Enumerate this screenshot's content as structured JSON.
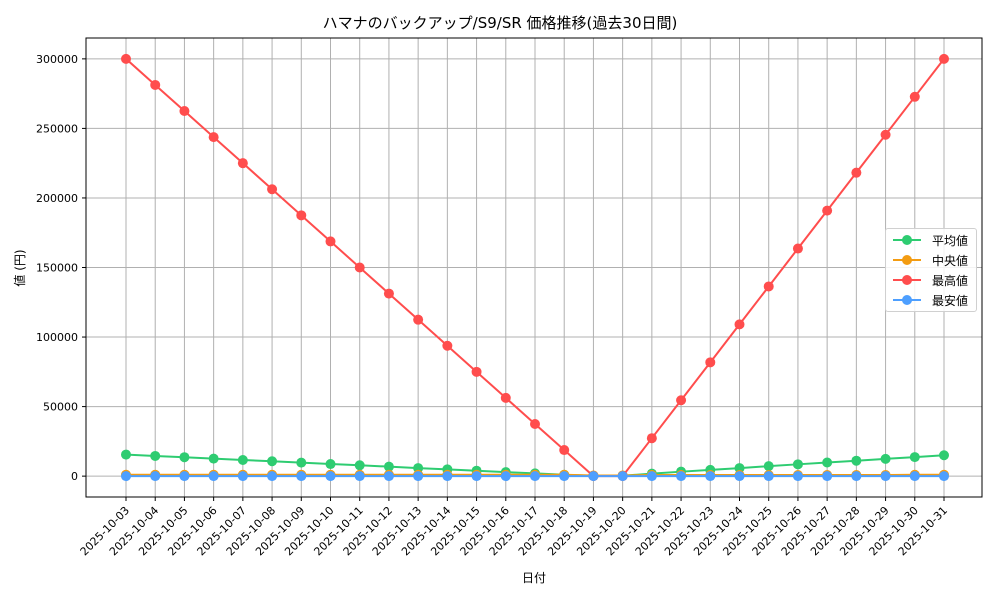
{
  "title": "ハマナのバックアップ/S9/SR 価格推移(過去30日間)",
  "chart_data": {
    "type": "line",
    "title": "ハマナのバックアップ/S9/SR 価格推移(過去30日間)",
    "xlabel": "日付",
    "ylabel": "値 (円)",
    "ylim": [
      -15000,
      315000
    ],
    "yticks": [
      0,
      50000,
      100000,
      150000,
      200000,
      250000,
      300000
    ],
    "grid": true,
    "legend_position": "center right",
    "x": [
      "2025-10-03",
      "2025-10-04",
      "2025-10-05",
      "2025-10-06",
      "2025-10-07",
      "2025-10-08",
      "2025-10-09",
      "2025-10-10",
      "2025-10-11",
      "2025-10-12",
      "2025-10-13",
      "2025-10-14",
      "2025-10-15",
      "2025-10-16",
      "2025-10-17",
      "2025-10-18",
      "2025-10-19",
      "2025-10-20",
      "2025-10-21",
      "2025-10-22",
      "2025-10-23",
      "2025-10-24",
      "2025-10-25",
      "2025-10-26",
      "2025-10-27",
      "2025-10-28",
      "2025-10-29",
      "2025-10-30",
      "2025-10-31"
    ],
    "series": [
      {
        "name": "平均値",
        "color": "#2ecc71",
        "values": [
          15500,
          14500,
          13600,
          12600,
          11600,
          10700,
          9700,
          8700,
          7800,
          6800,
          5800,
          4900,
          3900,
          2900,
          2000,
          1000,
          200,
          300,
          1800,
          3200,
          4500,
          5800,
          7200,
          8500,
          9800,
          11100,
          12400,
          13700,
          15000
        ]
      },
      {
        "name": "中央値",
        "color": "#f39c12",
        "values": [
          1000,
          1000,
          1000,
          1000,
          1000,
          1000,
          1000,
          1000,
          1000,
          1000,
          1000,
          1000,
          1000,
          1000,
          1000,
          1000,
          500,
          500,
          800,
          800,
          800,
          800,
          800,
          800,
          800,
          800,
          800,
          1000,
          1000
        ]
      },
      {
        "name": "最高値",
        "color": "#ff4d4d",
        "values": [
          300000,
          281250,
          262500,
          243750,
          225000,
          206250,
          187500,
          168750,
          150000,
          131250,
          112500,
          93750,
          75000,
          56250,
          37500,
          18750,
          0,
          0,
          27273,
          54545,
          81818,
          109091,
          136364,
          163636,
          190909,
          218182,
          245455,
          272727,
          300000
        ]
      },
      {
        "name": "最安値",
        "color": "#4d9fff",
        "values": [
          0,
          0,
          0,
          0,
          0,
          0,
          0,
          0,
          0,
          0,
          0,
          0,
          0,
          0,
          0,
          0,
          0,
          0,
          0,
          0,
          0,
          0,
          0,
          0,
          0,
          0,
          0,
          0,
          0
        ]
      }
    ]
  }
}
